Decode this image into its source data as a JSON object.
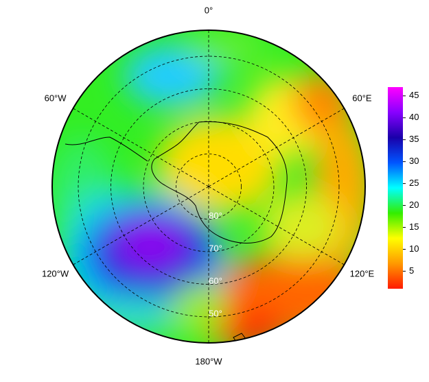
{
  "chart_data": {
    "type": "polar-map",
    "meridians": [
      {
        "value": 0,
        "label": "0°"
      },
      {
        "value": 60,
        "label": "60°E"
      },
      {
        "value": 120,
        "label": "120°E"
      },
      {
        "value": 180,
        "label": "180°W"
      },
      {
        "value": 240,
        "label": "120°W"
      },
      {
        "value": 300,
        "label": "60°W"
      }
    ],
    "parallels": [
      {
        "value": 80,
        "label": "80°"
      },
      {
        "value": 70,
        "label": "70°"
      },
      {
        "value": 60,
        "label": "60°"
      },
      {
        "value": 50,
        "label": "50°"
      }
    ],
    "colorbar": {
      "clim": [
        1,
        47
      ],
      "ticks": [
        5,
        10,
        15,
        20,
        25,
        30,
        35,
        40,
        45
      ],
      "colormap": [
        "#ff1a00",
        "#ff9900",
        "#ffff00",
        "#33ee00",
        "#00ffff",
        "#0055ff",
        "#1a00aa",
        "#8800ff",
        "#ff00ff"
      ]
    }
  }
}
